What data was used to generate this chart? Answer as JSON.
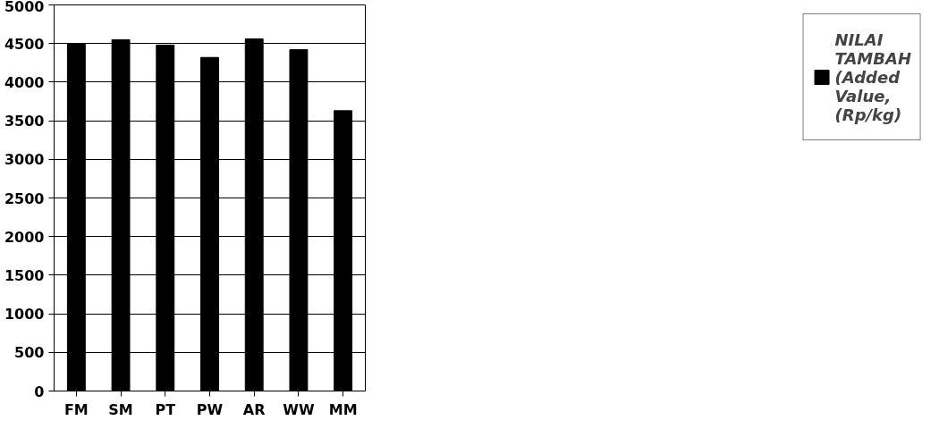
{
  "chart_data": {
    "type": "bar",
    "categories": [
      "FM",
      "SM",
      "PT",
      "PW",
      "AR",
      "WW",
      "MM"
    ],
    "series": [
      {
        "name": "NILAI TAMBAH (Added Value, (Rp/kg)",
        "color": "#000000",
        "values": [
          4500,
          4550,
          4480,
          4320,
          4560,
          4420,
          3630
        ]
      }
    ],
    "ylim": [
      0,
      5000
    ],
    "yticks": [
      0,
      500,
      1000,
      1500,
      2000,
      2500,
      3000,
      3500,
      4000,
      4500,
      5000
    ],
    "grid": "y",
    "legend": "right"
  }
}
